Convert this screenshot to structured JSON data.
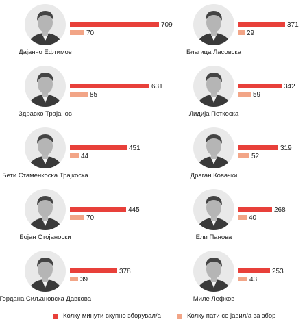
{
  "colors": {
    "minutes": "#e8403a",
    "count": "#f2a587",
    "text": "#222222",
    "avatar_bg": "#e9e9e9"
  },
  "legend": {
    "minutes_label": "Колку минути вкупно зборувал/а",
    "count_label": "Колку пати се јавил/а за збор"
  },
  "chart_data": {
    "type": "bar",
    "series": [
      {
        "name": "Колку минути вкупно зборувал/а",
        "key": "minutes"
      },
      {
        "name": "Колку пати се јавил/а за збор",
        "key": "count"
      }
    ],
    "people": [
      {
        "name": "Дајанчо Ефтимов",
        "minutes": 709,
        "count": 70
      },
      {
        "name": "Благица Ласовска",
        "minutes": 371,
        "count": 29
      },
      {
        "name": "Здравко Трајанов",
        "minutes": 631,
        "count": 85
      },
      {
        "name": "Лидија Петкоска",
        "minutes": 342,
        "count": 59
      },
      {
        "name": "Бети Стаменкоска Трајкоска",
        "minutes": 451,
        "count": 44
      },
      {
        "name": "Драган Ковачки",
        "minutes": 319,
        "count": 52
      },
      {
        "name": "Бојан Стојаноски",
        "minutes": 445,
        "count": 70
      },
      {
        "name": "Ели Панова",
        "minutes": 268,
        "count": 40
      },
      {
        "name": "Гордана Сиљановска Давкова",
        "minutes": 378,
        "count": 39
      },
      {
        "name": "Миле Лефков",
        "minutes": 253,
        "count": 43
      }
    ]
  }
}
